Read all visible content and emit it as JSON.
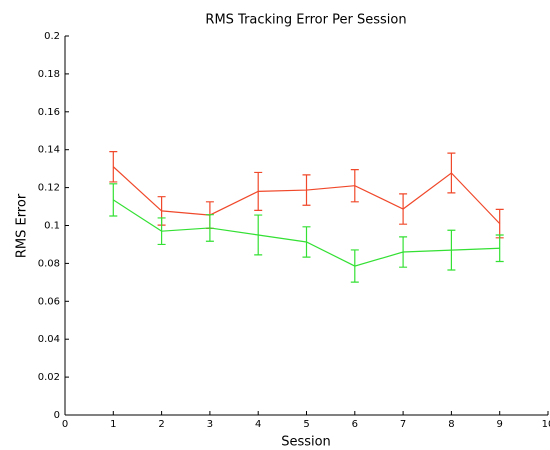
{
  "chart_data": {
    "type": "line",
    "title": "RMS Tracking Error Per Session",
    "xlabel": "Session",
    "ylabel": "RMS Error",
    "x": [
      1,
      2,
      3,
      4,
      5,
      6,
      7,
      8,
      9
    ],
    "series": [
      {
        "color": "#f0482a",
        "values": [
          0.131,
          0.1077,
          0.1055,
          0.118,
          0.1187,
          0.121,
          0.1087,
          0.1277,
          0.101
        ],
        "errors": [
          0.008,
          0.0075,
          0.007,
          0.01,
          0.008,
          0.0085,
          0.008,
          0.0105,
          0.0075
        ]
      },
      {
        "color": "#33e033",
        "values": [
          0.1135,
          0.097,
          0.0987,
          0.095,
          0.0913,
          0.0786,
          0.086,
          0.087,
          0.088
        ],
        "errors": [
          0.0085,
          0.007,
          0.007,
          0.0105,
          0.008,
          0.0085,
          0.008,
          0.0105,
          0.007
        ]
      }
    ],
    "xlim": [
      0,
      10
    ],
    "xticks": [
      0,
      1,
      2,
      3,
      4,
      5,
      6,
      7,
      8,
      9,
      10
    ],
    "ylim": [
      0,
      0.2
    ],
    "yticks": [
      0,
      0.02,
      0.04,
      0.06,
      0.08,
      0.1,
      0.12,
      0.14,
      0.16,
      0.18,
      0.2
    ]
  }
}
